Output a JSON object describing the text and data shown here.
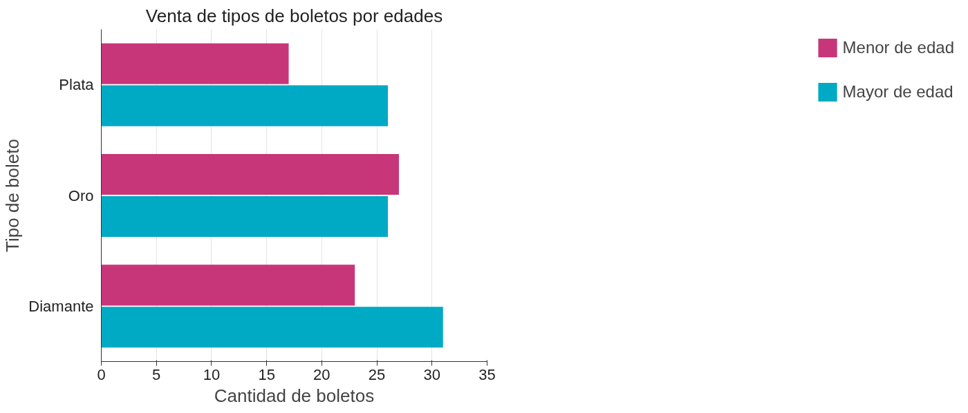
{
  "chart_data": {
    "type": "bar",
    "orientation": "horizontal",
    "title": "Venta de tipos de boletos por edades",
    "xlabel": "Cantidad de boletos",
    "ylabel": "Tipo de boleto",
    "categories": [
      "Plata",
      "Oro",
      "Diamante"
    ],
    "series": [
      {
        "name": "Menor de edad",
        "color": "#c8367a",
        "values": [
          17,
          27,
          23
        ]
      },
      {
        "name": "Mayor de edad",
        "color": "#00a9c4",
        "values": [
          26,
          26,
          31
        ]
      }
    ],
    "xlim": [
      0,
      35
    ],
    "xticks": [
      0,
      5,
      10,
      15,
      20,
      25,
      30,
      35
    ],
    "grid": "x",
    "legend": "right"
  }
}
